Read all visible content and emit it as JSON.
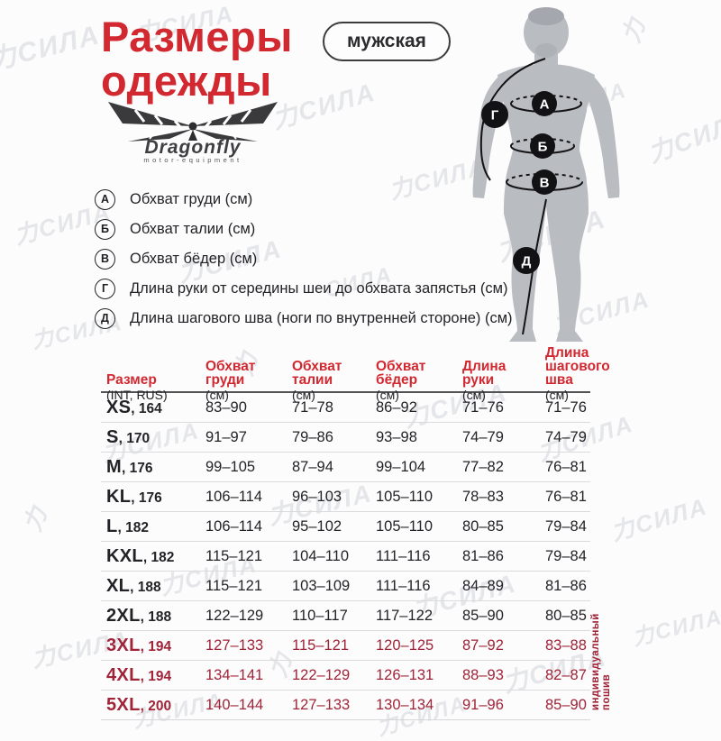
{
  "page": {
    "title_line1": "Размеры",
    "title_line2": "одежды",
    "badge": "мужская"
  },
  "logo": {
    "brand": "Dragonfly",
    "tagline": "motor-equipment"
  },
  "legend": [
    {
      "letter": "А",
      "label": "Обхват груди (см)"
    },
    {
      "letter": "Б",
      "label": "Обхват талии (см)"
    },
    {
      "letter": "В",
      "label": "Обхват бёдер (см)"
    },
    {
      "letter": "Г",
      "label": "Длина руки от середины шеи до обхвата запястья (см)"
    },
    {
      "letter": "Д",
      "label": "Длина шагового шва (ноги по внутренней стороне) (см)"
    }
  ],
  "figure": {
    "markers": [
      "А",
      "Б",
      "В",
      "Г",
      "Д"
    ]
  },
  "table": {
    "headers": [
      {
        "title": "Размер",
        "sub": "(INT, RUS)"
      },
      {
        "title": "Обхват\nгруди",
        "sub": "(см)"
      },
      {
        "title": "Обхват\nталии",
        "sub": "(см)"
      },
      {
        "title": "Обхват\nбёдер",
        "sub": "(см)"
      },
      {
        "title": "Длина\nруки",
        "sub": "(см)"
      },
      {
        "title": "Длина\nшагового шва",
        "sub": "(см)"
      }
    ],
    "rows": [
      {
        "size": "XS",
        "height": "164",
        "chest": "83–90",
        "waist": "71–78",
        "hip": "86–92",
        "arm": "71–76",
        "inseam": "71–76",
        "highlight": false
      },
      {
        "size": "S",
        "height": "170",
        "chest": "91–97",
        "waist": "79–86",
        "hip": "93–98",
        "arm": "74–79",
        "inseam": "74–79",
        "highlight": false
      },
      {
        "size": "M",
        "height": "176",
        "chest": "99–105",
        "waist": "87–94",
        "hip": "99–104",
        "arm": "77–82",
        "inseam": "76–81",
        "highlight": false
      },
      {
        "size": "KL",
        "height": "176",
        "chest": "106–114",
        "waist": "96–103",
        "hip": "105–110",
        "arm": "78–83",
        "inseam": "76–81",
        "highlight": false
      },
      {
        "size": "L",
        "height": "182",
        "chest": "106–114",
        "waist": "95–102",
        "hip": "105–110",
        "arm": "80–85",
        "inseam": "79–84",
        "highlight": false
      },
      {
        "size": "KXL",
        "height": "182",
        "chest": "115–121",
        "waist": "104–110",
        "hip": "111–116",
        "arm": "81–86",
        "inseam": "79–84",
        "highlight": false
      },
      {
        "size": "XL",
        "height": "188",
        "chest": "115–121",
        "waist": "103–109",
        "hip": "111–116",
        "arm": "84–89",
        "inseam": "81–86",
        "highlight": false
      },
      {
        "size": "2XL",
        "height": "188",
        "chest": "122–129",
        "waist": "110–117",
        "hip": "117–122",
        "arm": "85–90",
        "inseam": "80–85",
        "highlight": false
      },
      {
        "size": "3XL",
        "height": "194",
        "chest": "127–133",
        "waist": "115–121",
        "hip": "120–125",
        "arm": "87–92",
        "inseam": "83–88",
        "highlight": true
      },
      {
        "size": "4XL",
        "height": "194",
        "chest": "134–141",
        "waist": "122–129",
        "hip": "126–131",
        "arm": "88–93",
        "inseam": "82–87",
        "highlight": true
      },
      {
        "size": "5XL",
        "height": "200",
        "chest": "140–144",
        "waist": "127–133",
        "hip": "130–134",
        "arm": "91–96",
        "inseam": "85–90",
        "highlight": true
      }
    ]
  },
  "note_vertical": "индивидуальный\nпошив",
  "watermark": {
    "text": "力СИЛА",
    "text_short": "力"
  },
  "colors": {
    "accent_red": "#d22830",
    "highlight_red": "#a02438",
    "text_black": "#232327",
    "figure_gray": "#b9bcc1",
    "watermark_gray": "#d4d5da"
  }
}
